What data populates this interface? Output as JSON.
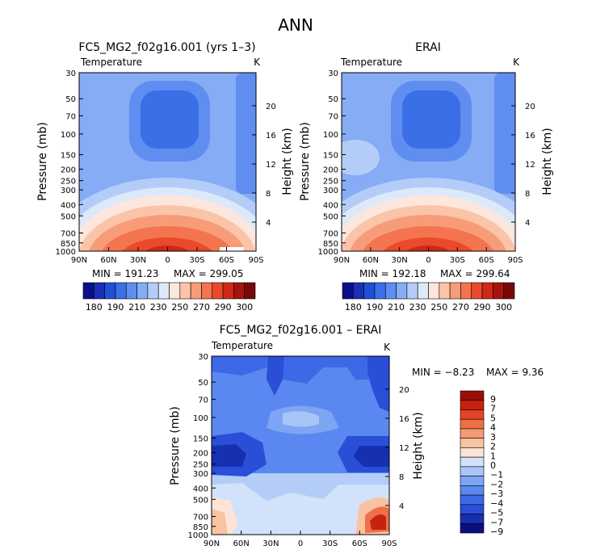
{
  "title": "ANN",
  "colors": {
    "positive_scale": [
      "#0a0f8c",
      "#1a2fb5",
      "#2050d8",
      "#3a6fe8",
      "#5f8ef0",
      "#86acf5",
      "#b3cdf8",
      "#dde9fb",
      "#fde7dd",
      "#fbc4a8",
      "#f79c78",
      "#f3744f",
      "#ea4a2b",
      "#d02818",
      "#a8120e",
      "#780808"
    ],
    "diff_scale": [
      "#0a0f7a",
      "#1530b0",
      "#2a4ed6",
      "#3c6ae6",
      "#5a88f0",
      "#7ea5f4",
      "#a9c4f7",
      "#d1e2fa",
      "#fde4d6",
      "#f9c2a2",
      "#f59a74",
      "#ef6f48",
      "#e24424",
      "#c62210",
      "#9a0e08"
    ]
  },
  "chart_data": [
    {
      "type": "contour",
      "panel": "model",
      "title": "FC5_MG2_f02g16.001 (yrs 1–3)",
      "variable": "Temperature",
      "units": "K",
      "xlabel": "",
      "ylabel": "Pressure (mb)",
      "y2label": "Height (km)",
      "x_ticks": [
        "90N",
        "60N",
        "30N",
        "0",
        "30S",
        "60S",
        "90S"
      ],
      "y_ticks": [
        30,
        50,
        70,
        100,
        150,
        200,
        250,
        300,
        400,
        500,
        700,
        850,
        1000
      ],
      "y2_ticks": [
        20,
        16,
        12,
        8,
        4
      ],
      "min": 191.23,
      "max": 299.05,
      "min_label": "MIN = 191.23",
      "max_label": "MAX = 299.05",
      "colorbar_levels": [
        180,
        190,
        200,
        210,
        220,
        230,
        240,
        250,
        260,
        270,
        280,
        290,
        300
      ],
      "colorbar_labels": [
        "180",
        "190",
        "210",
        "230",
        "250",
        "270",
        "290",
        "300"
      ]
    },
    {
      "type": "contour",
      "panel": "obs",
      "title": "ERAI",
      "variable": "Temperature",
      "units": "K",
      "ylabel": "Pressure (mb)",
      "y2label": "Height (km)",
      "x_ticks": [
        "90N",
        "60N",
        "30N",
        "0",
        "30S",
        "60S",
        "90S"
      ],
      "y_ticks": [
        30,
        50,
        70,
        100,
        150,
        200,
        250,
        300,
        400,
        500,
        700,
        850,
        1000
      ],
      "y2_ticks": [
        20,
        16,
        12,
        8,
        4
      ],
      "min": 192.18,
      "max": 299.64,
      "min_label": "MIN = 192.18",
      "max_label": "MAX = 299.64",
      "colorbar_levels": [
        180,
        190,
        200,
        210,
        220,
        230,
        240,
        250,
        260,
        270,
        280,
        290,
        300
      ],
      "colorbar_labels": [
        "180",
        "190",
        "210",
        "230",
        "250",
        "270",
        "290",
        "300"
      ]
    },
    {
      "type": "contour",
      "panel": "difference",
      "title": "FC5_MG2_f02g16.001 – ERAI",
      "variable": "Temperature",
      "units": "K",
      "ylabel": "Pressure (mb)",
      "y2label": "Height (km)",
      "x_ticks": [
        "90N",
        "60N",
        "30N",
        "0",
        "30S",
        "60S",
        "90S"
      ],
      "y_ticks": [
        30,
        50,
        70,
        100,
        150,
        200,
        250,
        300,
        400,
        500,
        700,
        850,
        1000
      ],
      "y2_ticks": [
        20,
        16,
        12,
        8,
        4
      ],
      "min": -8.23,
      "max": 9.36,
      "min_label": "MIN = −8.23",
      "max_label": "MAX =    9.36",
      "colorbar_levels": [
        -9,
        -7,
        -5,
        -4,
        -3,
        -2,
        -1,
        0,
        1,
        2,
        3,
        4,
        5,
        7,
        9
      ],
      "colorbar_labels": [
        "9",
        "7",
        "5",
        "4",
        "3",
        "2",
        "1",
        "0",
        "−1",
        "−2",
        "−3",
        "−4",
        "−5",
        "−7",
        "−9"
      ]
    }
  ]
}
